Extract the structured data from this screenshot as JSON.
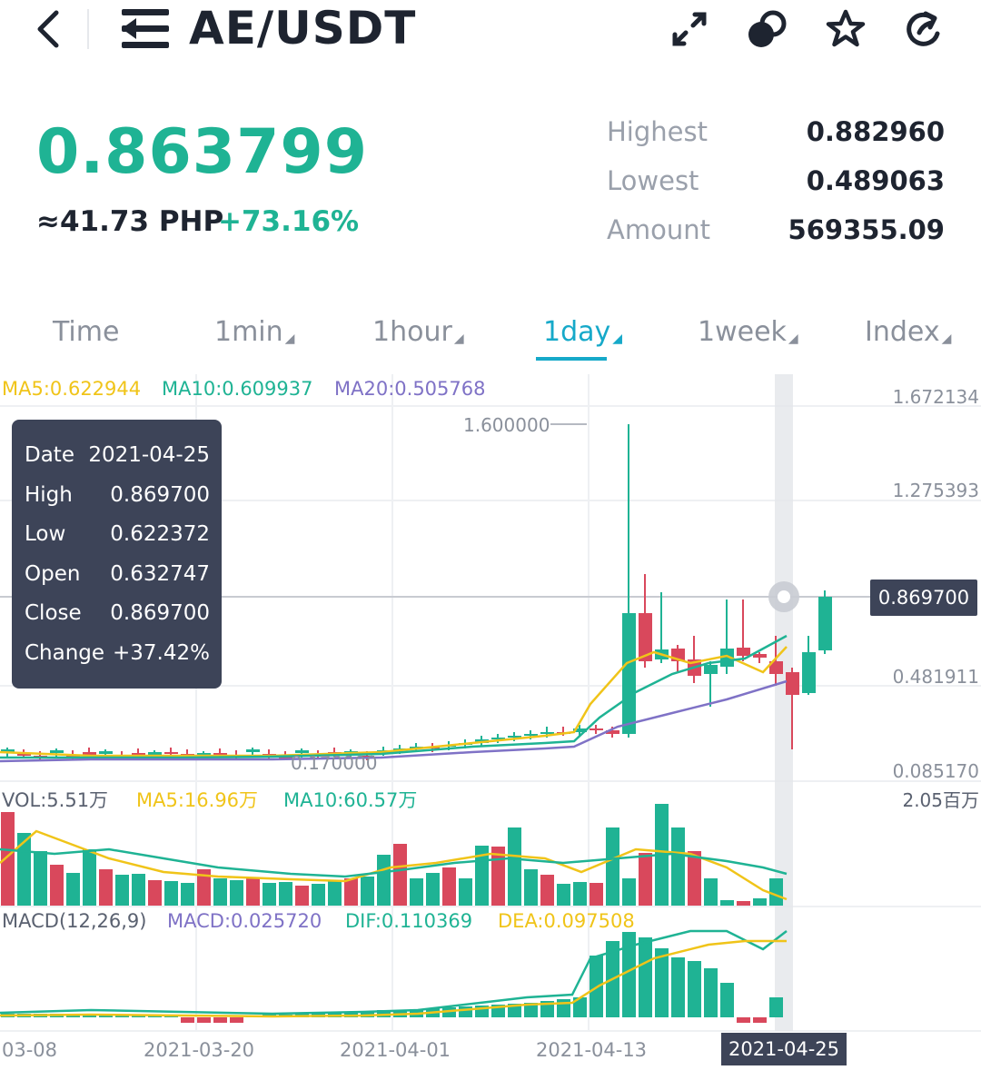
{
  "header": {
    "title": "AE/USDT",
    "icons": [
      "back-icon",
      "menu-icon",
      "expand-icon",
      "compare-icon",
      "star-icon",
      "share-icon"
    ]
  },
  "ticker": {
    "price": "0.863799",
    "fiat": "≈41.73 PHP",
    "change": "+73.16%",
    "stats": [
      {
        "label": "Highest",
        "value": "0.882960"
      },
      {
        "label": "Lowest",
        "value": "0.489063"
      },
      {
        "label": "Amount",
        "value": "569355.09"
      }
    ]
  },
  "tabs": [
    {
      "label": "Time",
      "dropdown": false
    },
    {
      "label": "1min",
      "dropdown": true
    },
    {
      "label": "1hour",
      "dropdown": true
    },
    {
      "label": "1day",
      "dropdown": true,
      "active": true
    },
    {
      "label": "1week",
      "dropdown": true
    },
    {
      "label": "Index",
      "dropdown": true
    }
  ],
  "dropdown_glyph": "◢",
  "main_chart": {
    "ma5": "MA5:0.622944",
    "ma10": "MA10:0.609937",
    "ma20": "MA20:0.505768",
    "y_ticks": [
      "1.672134",
      "1.275393",
      "0.481911",
      "0.085170"
    ],
    "peak_label": "1.600000",
    "low_label": "0.170000",
    "current_price_tag": "0.869700"
  },
  "tooltip": {
    "rows": [
      {
        "key": "Date",
        "value": "2021-04-25"
      },
      {
        "key": "High",
        "value": "0.869700"
      },
      {
        "key": "Low",
        "value": "0.622372"
      },
      {
        "key": "Open",
        "value": "0.632747"
      },
      {
        "key": "Close",
        "value": "0.869700"
      },
      {
        "key": "Change",
        "value": "+37.42%"
      }
    ]
  },
  "volume": {
    "vol": "VOL:5.51万",
    "ma5": "MA5:16.96万",
    "ma10": "MA10:60.57万",
    "max": "2.05百万"
  },
  "macd": {
    "params": "MACD(12,26,9)",
    "macd": "MACD:0.025720",
    "dif": "DIF:0.110369",
    "dea": "DEA:0.097508"
  },
  "x_axis": [
    "03-08",
    "2021-03-20",
    "2021-04-01",
    "2021-04-13"
  ],
  "x_active": "2021-04-25",
  "colors": {
    "up": "#1fb394",
    "down": "#d9485c",
    "ma5": "#f0c419",
    "ma10": "#1fb394",
    "ma20": "#7f72c6",
    "accent": "#16a9c9",
    "dark": "#3d4458"
  }
}
